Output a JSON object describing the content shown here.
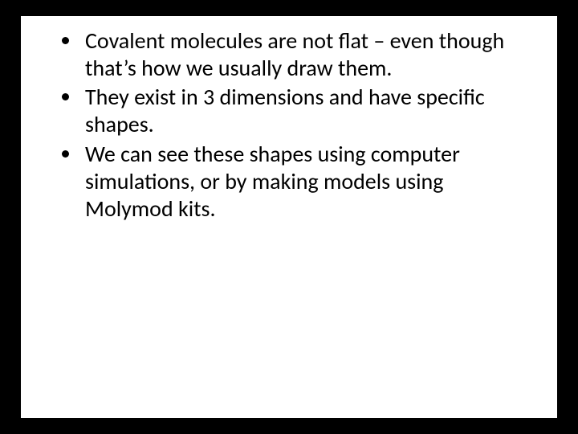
{
  "slide": {
    "background_color": "#000000",
    "panel_background_color": "#ffffff",
    "text_color": "#000000",
    "font_family": "Calibri",
    "font_size_pt": 28,
    "bullets": [
      "Covalent molecules are not flat – even though that’s how we usually draw them.",
      "They exist in 3 dimensions and have specific shapes.",
      "We can see these shapes using computer simulations, or by making models using Molymod kits."
    ]
  }
}
